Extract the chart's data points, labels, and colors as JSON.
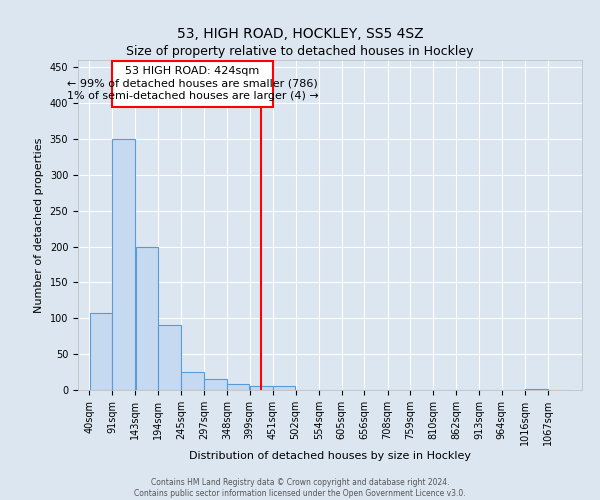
{
  "title": "53, HIGH ROAD, HOCKLEY, SS5 4SZ",
  "subtitle": "Size of property relative to detached houses in Hockley",
  "xlabel": "Distribution of detached houses by size in Hockley",
  "ylabel": "Number of detached properties",
  "bar_values": [
    107,
    350,
    200,
    90,
    25,
    16,
    9,
    6,
    5,
    0,
    0,
    0,
    0,
    0,
    0,
    0,
    0,
    0,
    0,
    2,
    0
  ],
  "bin_edges": [
    40,
    91,
    143,
    194,
    245,
    297,
    348,
    399,
    451,
    502,
    554,
    605,
    656,
    708,
    759,
    810,
    862,
    913,
    964,
    1016,
    1067,
    1118
  ],
  "x_tick_labels": [
    "40sqm",
    "91sqm",
    "143sqm",
    "194sqm",
    "245sqm",
    "297sqm",
    "348sqm",
    "399sqm",
    "451sqm",
    "502sqm",
    "554sqm",
    "605sqm",
    "656sqm",
    "708sqm",
    "759sqm",
    "810sqm",
    "862sqm",
    "913sqm",
    "964sqm",
    "1016sqm",
    "1067sqm"
  ],
  "bar_color": "#c5d9f0",
  "bar_edge_color": "#5b9bd5",
  "background_color": "#dce6f1",
  "grid_color": "#ffffff",
  "red_line_x": 424,
  "annotation_title": "53 HIGH ROAD: 424sqm",
  "annotation_line1": "← 99% of detached houses are smaller (786)",
  "annotation_line2": "1% of semi-detached houses are larger (4) →",
  "ylim": [
    0,
    460
  ],
  "title_fontsize": 10,
  "axis_label_fontsize": 8,
  "tick_fontsize": 7,
  "footer_line1": "Contains HM Land Registry data © Crown copyright and database right 2024.",
  "footer_line2": "Contains public sector information licensed under the Open Government Licence v3.0."
}
